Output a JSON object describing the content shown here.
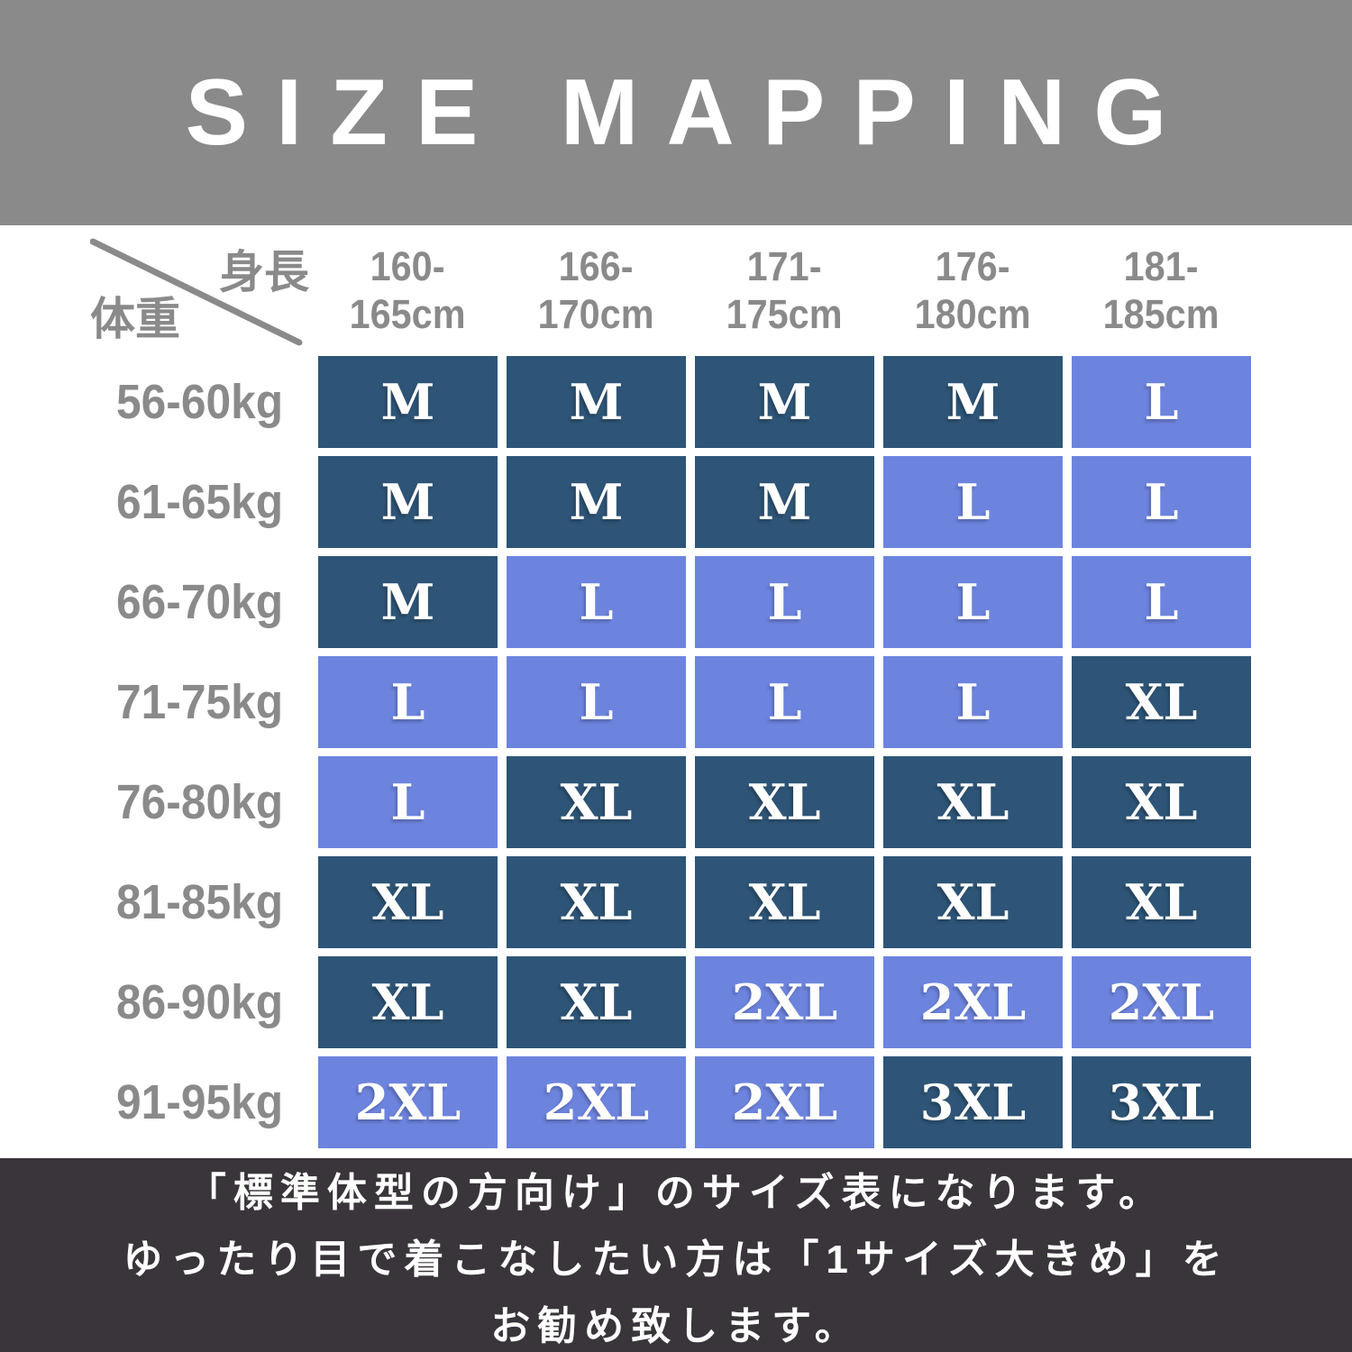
{
  "title": "SIZE MAPPING",
  "table": {
    "corner": {
      "height_label": "身長",
      "weight_label": "体重"
    }
  },
  "chart_data": {
    "type": "table",
    "title": "SIZE MAPPING",
    "column_axis_label": "身長",
    "row_axis_label": "体重",
    "columns": [
      "160-165cm",
      "166-170cm",
      "171-175cm",
      "176-180cm",
      "181-185cm"
    ],
    "rows": [
      "56-60kg",
      "61-65kg",
      "66-70kg",
      "71-75kg",
      "76-80kg",
      "81-85kg",
      "86-90kg",
      "91-95kg"
    ],
    "values": [
      [
        "M",
        "M",
        "M",
        "M",
        "L"
      ],
      [
        "M",
        "M",
        "M",
        "L",
        "L"
      ],
      [
        "M",
        "L",
        "L",
        "L",
        "L"
      ],
      [
        "L",
        "L",
        "L",
        "L",
        "XL"
      ],
      [
        "L",
        "XL",
        "XL",
        "XL",
        "XL"
      ],
      [
        "XL",
        "XL",
        "XL",
        "XL",
        "XL"
      ],
      [
        "XL",
        "XL",
        "2XL",
        "2XL",
        "2XL"
      ],
      [
        "2XL",
        "2XL",
        "2XL",
        "3XL",
        "3XL"
      ]
    ]
  },
  "size_shade": {
    "M": "dark",
    "L": "light",
    "XL": "dark",
    "2XL": "light",
    "3XL": "dark"
  },
  "footer": {
    "lines": [
      "「標準体型の方向け」のサイズ表になります。",
      "ゆったり目で着こなしたい方は「1サイズ大きめ」を",
      "お勧め致します。"
    ]
  },
  "colors": {
    "header_bg": "#8a8a8a",
    "label_gray": "#8a8a8a",
    "cell_dark": "#2e5577",
    "cell_light": "#6d84de",
    "footer_bg": "#39353a",
    "cell_text": "#ffffff"
  }
}
